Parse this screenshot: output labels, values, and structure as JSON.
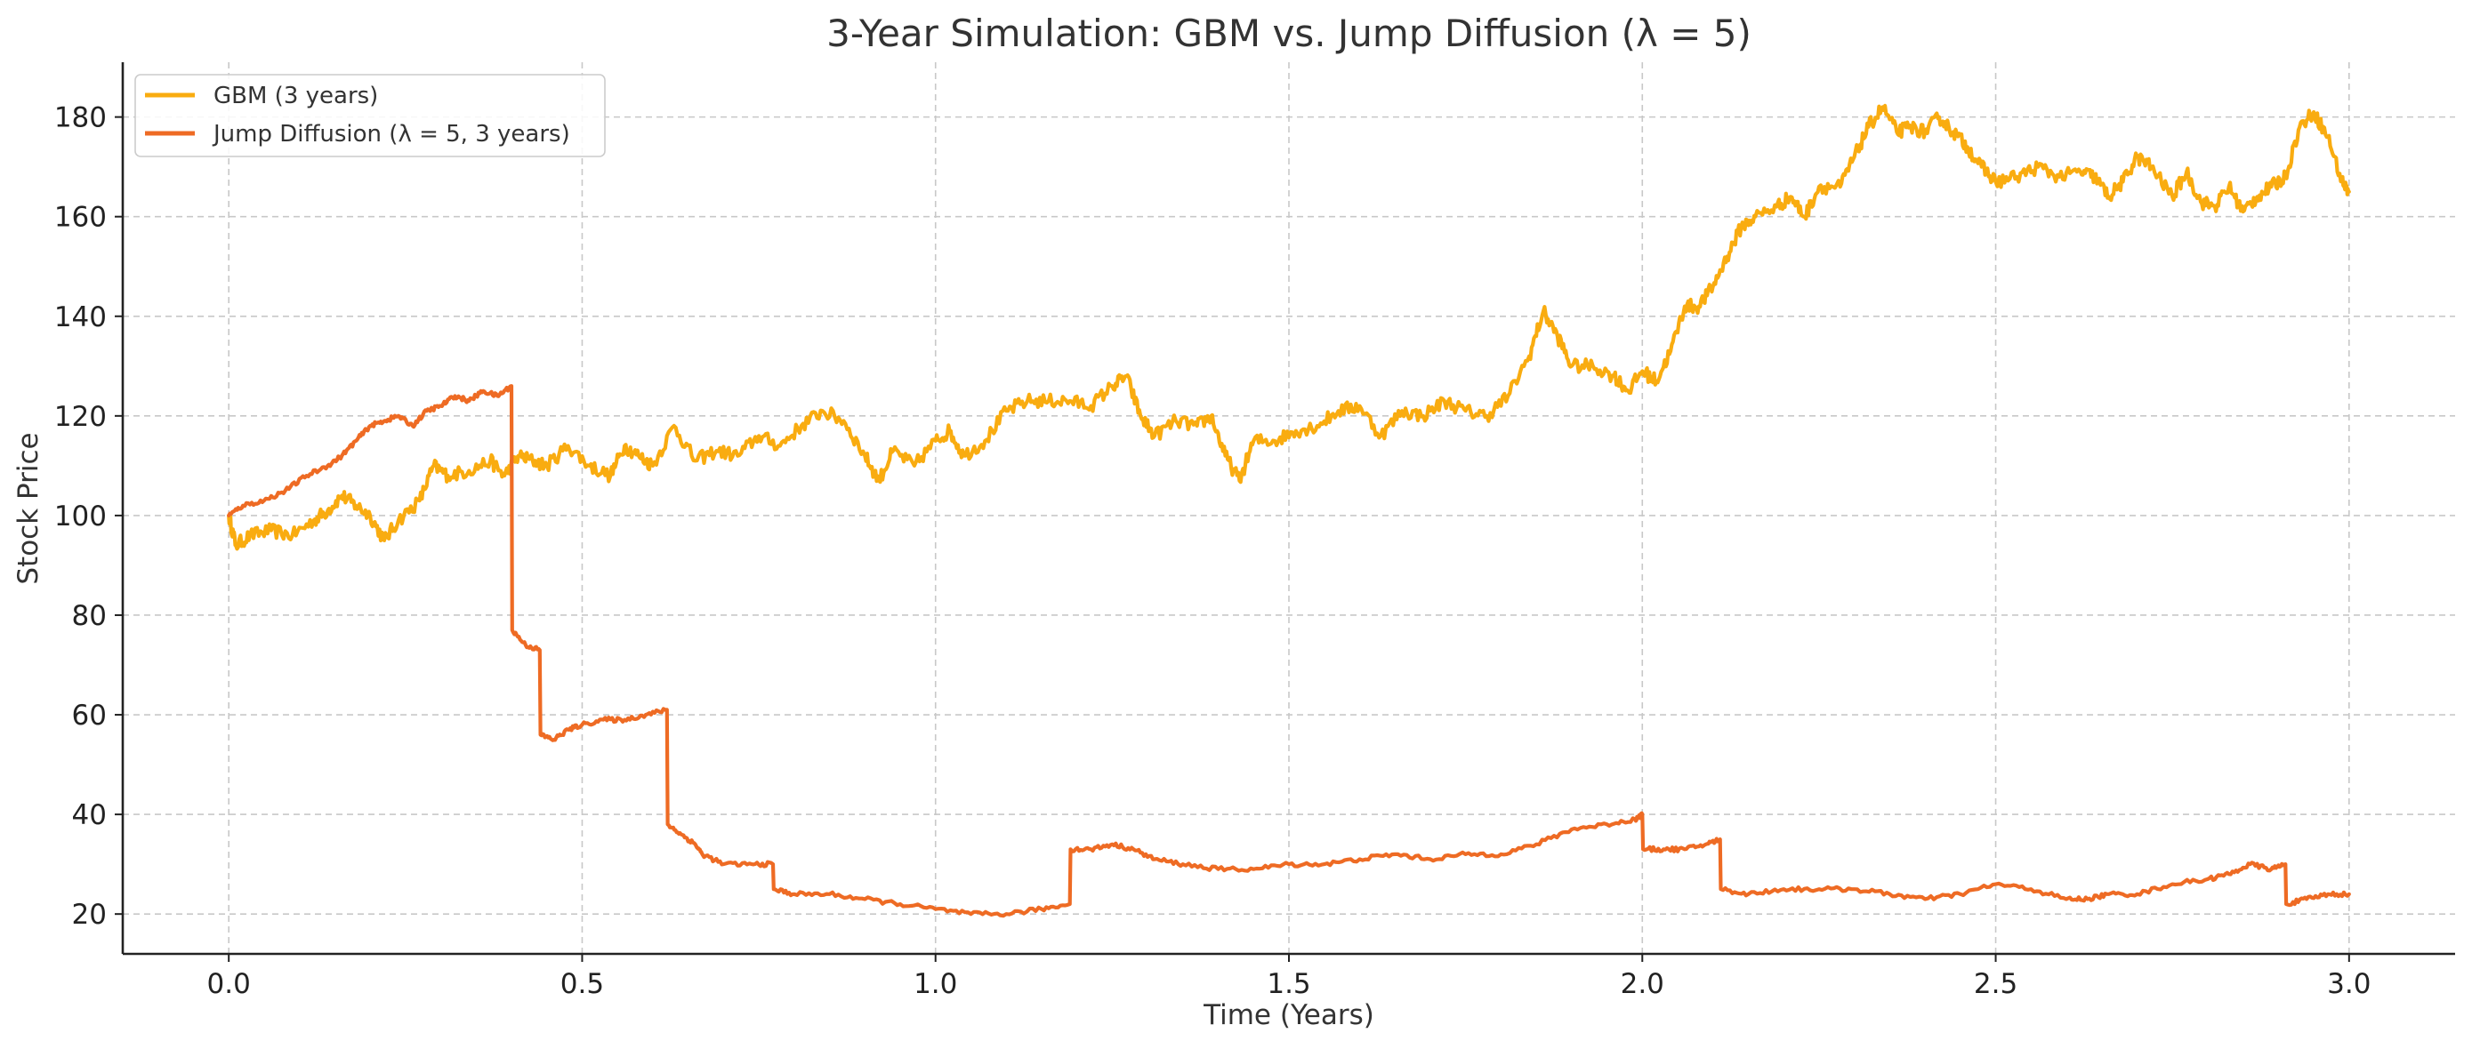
{
  "chart_data": {
    "type": "line",
    "title": "3-Year Simulation: GBM vs. Jump Diffusion (λ = 5)",
    "xlabel": "Time (Years)",
    "ylabel": "Stock Price",
    "xlim": [
      -0.15,
      3.15
    ],
    "ylim": [
      12,
      191
    ],
    "xticks": [
      0.0,
      0.5,
      1.0,
      1.5,
      2.0,
      2.5,
      3.0
    ],
    "xtick_labels": [
      "0.0",
      "0.5",
      "1.0",
      "1.5",
      "2.0",
      "2.5",
      "3.0"
    ],
    "yticks": [
      20,
      40,
      60,
      80,
      100,
      120,
      140,
      160,
      180
    ],
    "ytick_labels": [
      "20",
      "40",
      "60",
      "80",
      "100",
      "120",
      "140",
      "160",
      "180"
    ],
    "grid": true,
    "legend_position": "top-left",
    "series": [
      {
        "name": "GBM (3 years)",
        "color": "#F9AC10",
        "points": [
          [
            0.0,
            100
          ],
          [
            0.01,
            94
          ],
          [
            0.03,
            96
          ],
          [
            0.06,
            97
          ],
          [
            0.09,
            96
          ],
          [
            0.12,
            99
          ],
          [
            0.14,
            101
          ],
          [
            0.16,
            104
          ],
          [
            0.18,
            102
          ],
          [
            0.2,
            100
          ],
          [
            0.22,
            95
          ],
          [
            0.24,
            99
          ],
          [
            0.27,
            103
          ],
          [
            0.29,
            110
          ],
          [
            0.31,
            108
          ],
          [
            0.34,
            109
          ],
          [
            0.37,
            111
          ],
          [
            0.39,
            108
          ],
          [
            0.41,
            112
          ],
          [
            0.43,
            111
          ],
          [
            0.45,
            110
          ],
          [
            0.48,
            114
          ],
          [
            0.51,
            110
          ],
          [
            0.54,
            108
          ],
          [
            0.56,
            114
          ],
          [
            0.58,
            112
          ],
          [
            0.6,
            110
          ],
          [
            0.63,
            118
          ],
          [
            0.66,
            111
          ],
          [
            0.69,
            113
          ],
          [
            0.72,
            112
          ],
          [
            0.75,
            116
          ],
          [
            0.78,
            114
          ],
          [
            0.81,
            118
          ],
          [
            0.84,
            121
          ],
          [
            0.87,
            119
          ],
          [
            0.9,
            112
          ],
          [
            0.92,
            107
          ],
          [
            0.94,
            113
          ],
          [
            0.97,
            110
          ],
          [
            1.0,
            115
          ],
          [
            1.02,
            117
          ],
          [
            1.04,
            112
          ],
          [
            1.07,
            115
          ],
          [
            1.1,
            121
          ],
          [
            1.13,
            123
          ],
          [
            1.16,
            123
          ],
          [
            1.19,
            123
          ],
          [
            1.22,
            122
          ],
          [
            1.25,
            126
          ],
          [
            1.27,
            128
          ],
          [
            1.29,
            120
          ],
          [
            1.31,
            116
          ],
          [
            1.34,
            119
          ],
          [
            1.37,
            118
          ],
          [
            1.39,
            120
          ],
          [
            1.41,
            112
          ],
          [
            1.43,
            107
          ],
          [
            1.45,
            115
          ],
          [
            1.48,
            115
          ],
          [
            1.51,
            117
          ],
          [
            1.54,
            118
          ],
          [
            1.57,
            121
          ],
          [
            1.6,
            122
          ],
          [
            1.63,
            116
          ],
          [
            1.66,
            121
          ],
          [
            1.69,
            120
          ],
          [
            1.72,
            123
          ],
          [
            1.75,
            121
          ],
          [
            1.78,
            120
          ],
          [
            1.81,
            124
          ],
          [
            1.84,
            132
          ],
          [
            1.86,
            141
          ],
          [
            1.88,
            136
          ],
          [
            1.9,
            130
          ],
          [
            1.93,
            130
          ],
          [
            1.96,
            128
          ],
          [
            1.98,
            125
          ],
          [
            2.0,
            129
          ],
          [
            2.02,
            127
          ],
          [
            2.04,
            133
          ],
          [
            2.06,
            142
          ],
          [
            2.08,
            142
          ],
          [
            2.1,
            146
          ],
          [
            2.12,
            152
          ],
          [
            2.14,
            158
          ],
          [
            2.16,
            160
          ],
          [
            2.19,
            162
          ],
          [
            2.21,
            164
          ],
          [
            2.23,
            160
          ],
          [
            2.25,
            166
          ],
          [
            2.28,
            166
          ],
          [
            2.3,
            172
          ],
          [
            2.32,
            178
          ],
          [
            2.34,
            182
          ],
          [
            2.36,
            177
          ],
          [
            2.38,
            178
          ],
          [
            2.4,
            177
          ],
          [
            2.42,
            180
          ],
          [
            2.44,
            177
          ],
          [
            2.46,
            174
          ],
          [
            2.48,
            170
          ],
          [
            2.5,
            167
          ],
          [
            2.53,
            168
          ],
          [
            2.56,
            170
          ],
          [
            2.59,
            168
          ],
          [
            2.62,
            169
          ],
          [
            2.64,
            168
          ],
          [
            2.66,
            164
          ],
          [
            2.68,
            167
          ],
          [
            2.7,
            172
          ],
          [
            2.72,
            170
          ],
          [
            2.75,
            164
          ],
          [
            2.77,
            169
          ],
          [
            2.79,
            163
          ],
          [
            2.81,
            162
          ],
          [
            2.83,
            166
          ],
          [
            2.85,
            161
          ],
          [
            2.87,
            164
          ],
          [
            2.89,
            166
          ],
          [
            2.91,
            168
          ],
          [
            2.93,
            178
          ],
          [
            2.95,
            181
          ],
          [
            2.97,
            176
          ],
          [
            2.99,
            167
          ],
          [
            3.0,
            165
          ]
        ]
      },
      {
        "name": "Jump Diffusion (λ = 5, 3 years)",
        "color": "#EE6B24",
        "points": [
          [
            0.0,
            100
          ],
          [
            0.02,
            102
          ],
          [
            0.05,
            103
          ],
          [
            0.08,
            105
          ],
          [
            0.11,
            108
          ],
          [
            0.14,
            110
          ],
          [
            0.16,
            112
          ],
          [
            0.18,
            115
          ],
          [
            0.2,
            118
          ],
          [
            0.22,
            119
          ],
          [
            0.24,
            120
          ],
          [
            0.26,
            118
          ],
          [
            0.28,
            121
          ],
          [
            0.3,
            122
          ],
          [
            0.32,
            124
          ],
          [
            0.34,
            123
          ],
          [
            0.36,
            125
          ],
          [
            0.38,
            124
          ],
          [
            0.4,
            126
          ],
          [
            0.401,
            77
          ],
          [
            0.42,
            74
          ],
          [
            0.44,
            73
          ],
          [
            0.441,
            56
          ],
          [
            0.46,
            55
          ],
          [
            0.48,
            57
          ],
          [
            0.5,
            58
          ],
          [
            0.53,
            59
          ],
          [
            0.56,
            59
          ],
          [
            0.59,
            60
          ],
          [
            0.62,
            61
          ],
          [
            0.621,
            38
          ],
          [
            0.64,
            36
          ],
          [
            0.66,
            34
          ],
          [
            0.67,
            32
          ],
          [
            0.7,
            30
          ],
          [
            0.74,
            30
          ],
          [
            0.77,
            30
          ],
          [
            0.771,
            25
          ],
          [
            0.8,
            24
          ],
          [
            0.85,
            24
          ],
          [
            0.9,
            23
          ],
          [
            0.95,
            22
          ],
          [
            1.0,
            21
          ],
          [
            1.05,
            20
          ],
          [
            1.1,
            20
          ],
          [
            1.15,
            21
          ],
          [
            1.19,
            22
          ],
          [
            1.191,
            33
          ],
          [
            1.22,
            33
          ],
          [
            1.25,
            34
          ],
          [
            1.28,
            33
          ],
          [
            1.31,
            31
          ],
          [
            1.35,
            30
          ],
          [
            1.4,
            29
          ],
          [
            1.45,
            29
          ],
          [
            1.5,
            30
          ],
          [
            1.55,
            30
          ],
          [
            1.6,
            31
          ],
          [
            1.65,
            32
          ],
          [
            1.7,
            31
          ],
          [
            1.75,
            32
          ],
          [
            1.8,
            32
          ],
          [
            1.85,
            34
          ],
          [
            1.9,
            37
          ],
          [
            1.95,
            38
          ],
          [
            1.99,
            39
          ],
          [
            2.0,
            40
          ],
          [
            2.001,
            33
          ],
          [
            2.03,
            33
          ],
          [
            2.06,
            33
          ],
          [
            2.09,
            34
          ],
          [
            2.11,
            35
          ],
          [
            2.111,
            25
          ],
          [
            2.15,
            24
          ],
          [
            2.2,
            25
          ],
          [
            2.25,
            25
          ],
          [
            2.3,
            25
          ],
          [
            2.35,
            24
          ],
          [
            2.4,
            23
          ],
          [
            2.45,
            24
          ],
          [
            2.5,
            26
          ],
          [
            2.55,
            25
          ],
          [
            2.6,
            23
          ],
          [
            2.63,
            23
          ],
          [
            2.66,
            24
          ],
          [
            2.7,
            24
          ],
          [
            2.75,
            26
          ],
          [
            2.8,
            27
          ],
          [
            2.83,
            28
          ],
          [
            2.86,
            30
          ],
          [
            2.89,
            29
          ],
          [
            2.91,
            30
          ],
          [
            2.911,
            22
          ],
          [
            2.94,
            23
          ],
          [
            2.97,
            24
          ],
          [
            3.0,
            24
          ]
        ]
      }
    ]
  }
}
